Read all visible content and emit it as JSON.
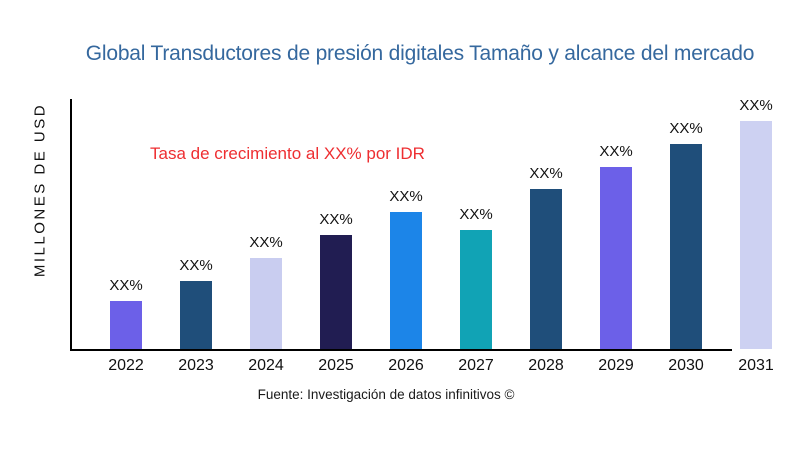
{
  "title": "Global Transductores de presión digitales Tamaño y alcance del mercado",
  "annotation": "Tasa de crecimiento al XX% por IDR",
  "y_axis_label": "MILLONES DE USD",
  "source": "Fuente: Investigación de datos infinitivos ©",
  "colors": {
    "title_text": "#35689E",
    "annotation_text": "#EE2E31",
    "axis_line": "#000000",
    "label_text": "#111111"
  },
  "chart_data": {
    "type": "bar",
    "title": "Global Transductores de presión digitales Tamaño y alcance del mercado",
    "xlabel": "",
    "ylabel": "MILLONES DE USD",
    "categories": [
      "2022",
      "2023",
      "2024",
      "2025",
      "2026",
      "2027",
      "2028",
      "2029",
      "2030",
      "2031"
    ],
    "values": [
      21,
      30,
      40,
      50,
      60,
      52,
      70,
      80,
      90,
      100
    ],
    "values_unit": "percent of tallest bar (no numeric axis shown; bars labeled XX%)",
    "bar_labels": [
      "XX%",
      "XX%",
      "XX%",
      "XX%",
      "XX%",
      "XX%",
      "XX%",
      "XX%",
      "XX%",
      "XX%"
    ],
    "bar_colors": [
      "#6C60E8",
      "#1F4E7A",
      "#C9CDF0",
      "#211D52",
      "#1C85E8",
      "#11A3B5",
      "#1F4E7A",
      "#6C60E8",
      "#1F4E7A",
      "#CDD1F2"
    ],
    "annotation": "Tasa de crecimiento al XX% por IDR",
    "source": "Fuente: Investigación de datos infinitivos ©",
    "grid": false,
    "legend": false,
    "y_ticks_shown": false
  }
}
